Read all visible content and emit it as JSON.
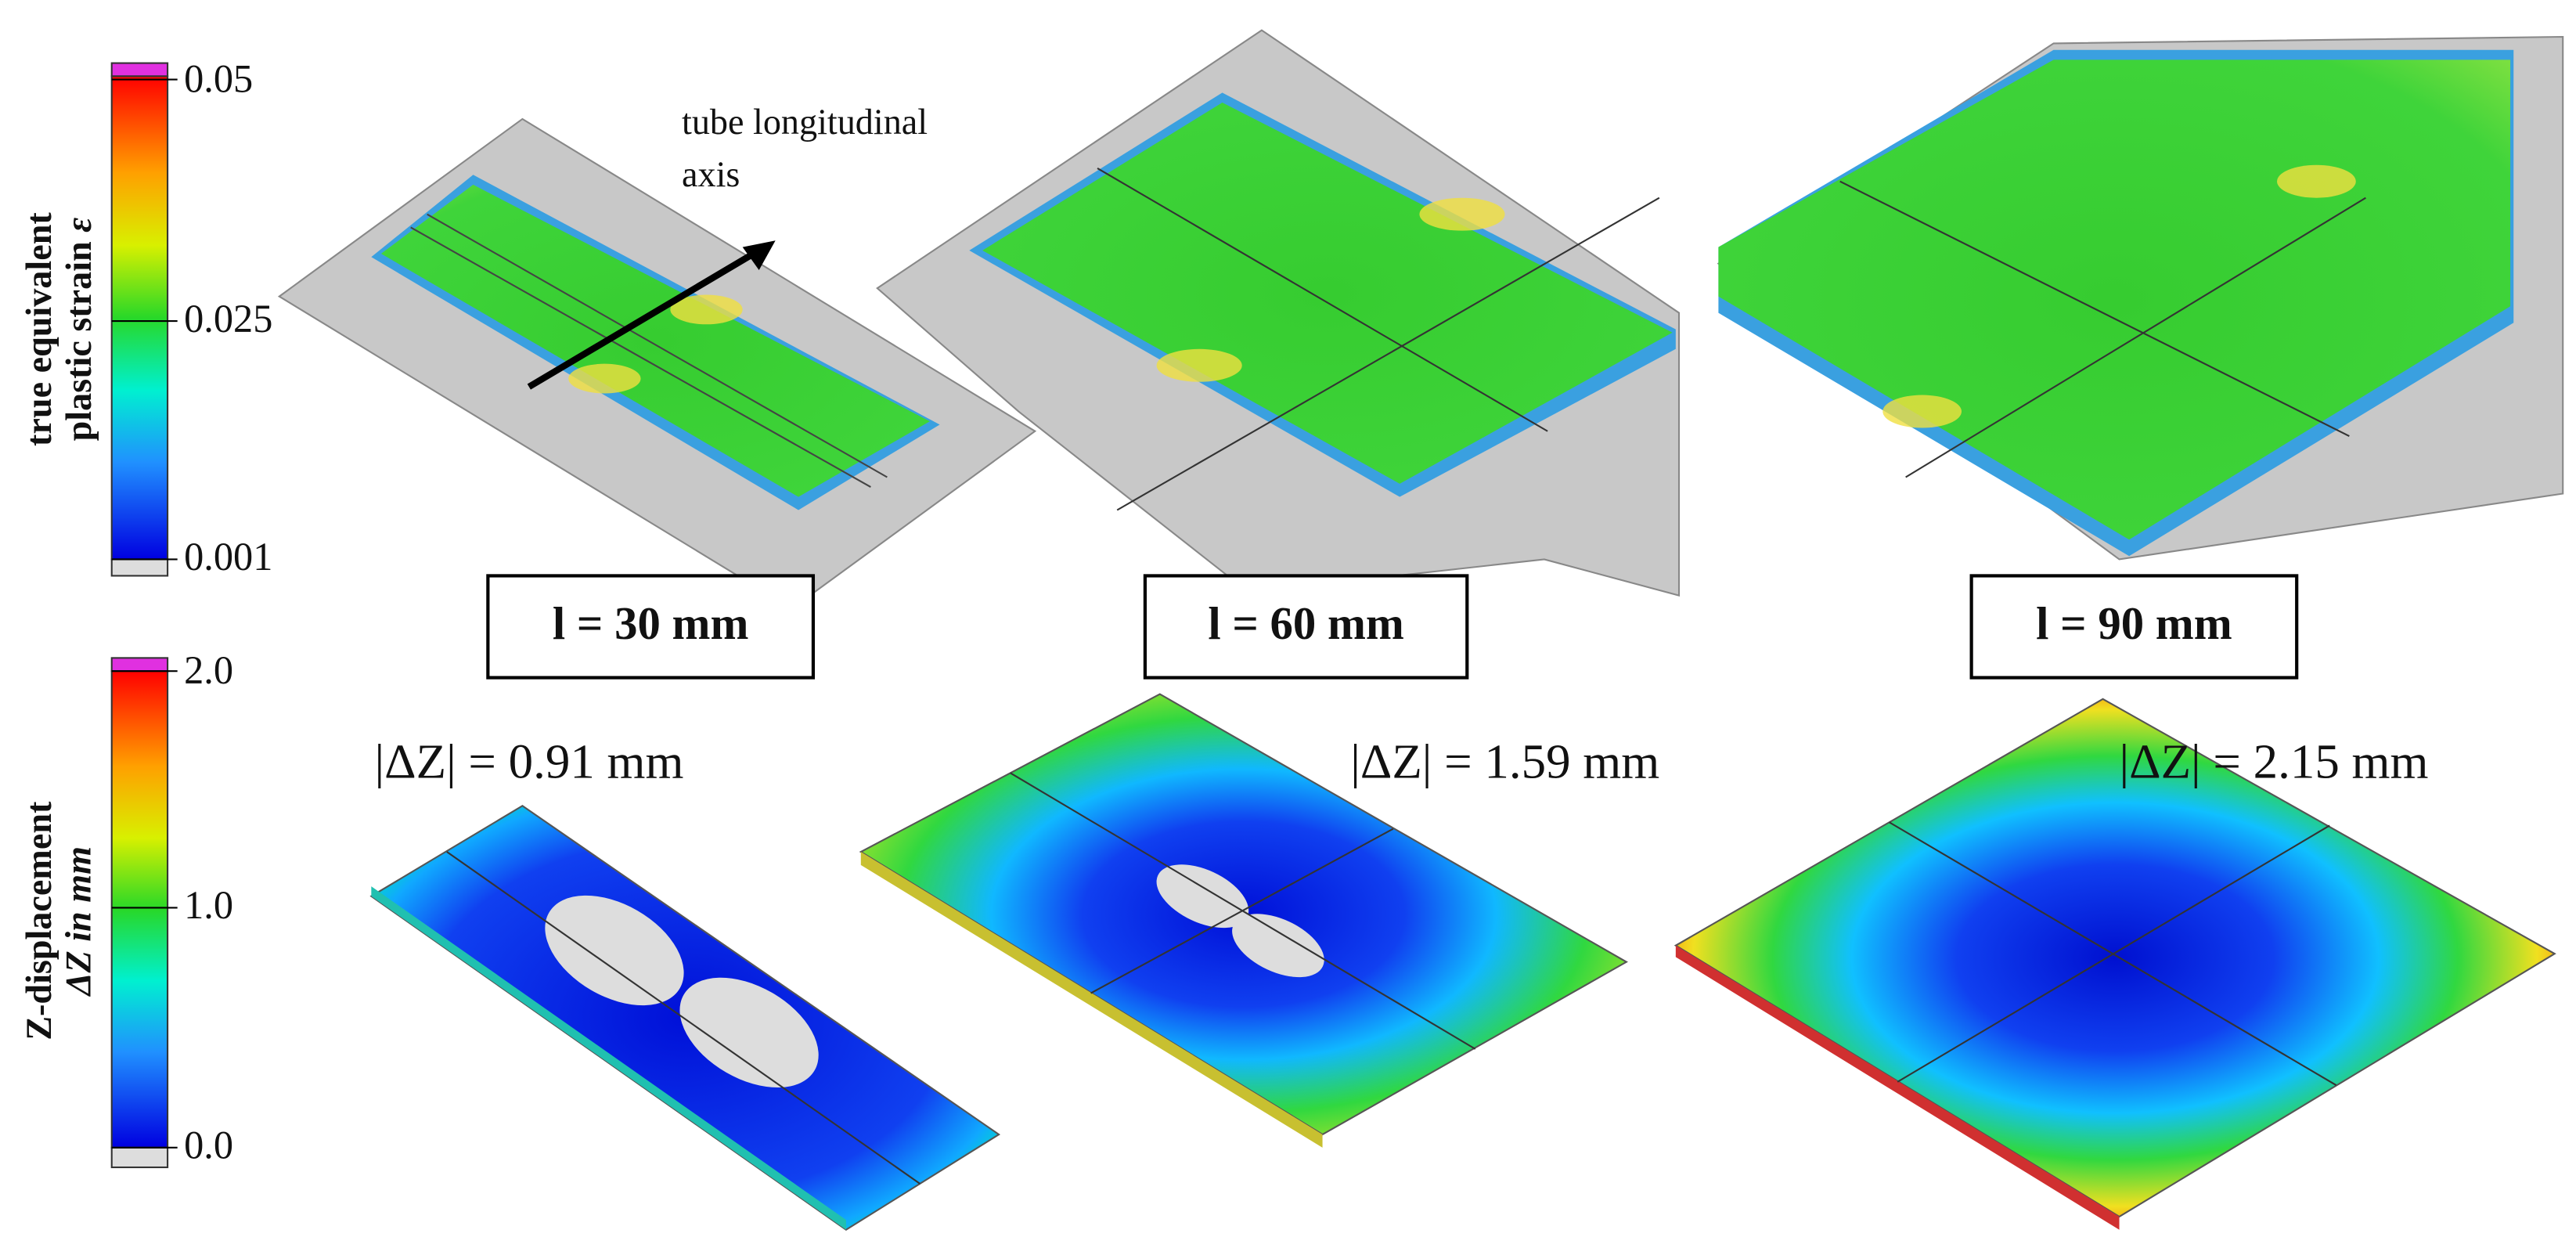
{
  "strain_legend": {
    "title_line1": "true equivalent",
    "title_line2": "plastic strain",
    "symbol": "ε",
    "ticks": [
      "0.05",
      "0.025",
      "0.001"
    ]
  },
  "annotation": {
    "line1": "tube longitudinal",
    "line2": "axis"
  },
  "panels": [
    {
      "label": "l = 30 mm",
      "displacement": "|ΔZ| = 0.91 mm"
    },
    {
      "label": "l = 60 mm",
      "displacement": "|ΔZ| = 1.59 mm"
    },
    {
      "label": "l = 90 mm",
      "displacement": "|ΔZ| = 2.15 mm"
    }
  ],
  "displacement_legend": {
    "title_line1": "Z-displacement",
    "title_line2": "ΔZ in mm",
    "ticks": [
      "2.0",
      "1.0",
      "0.0"
    ]
  }
}
